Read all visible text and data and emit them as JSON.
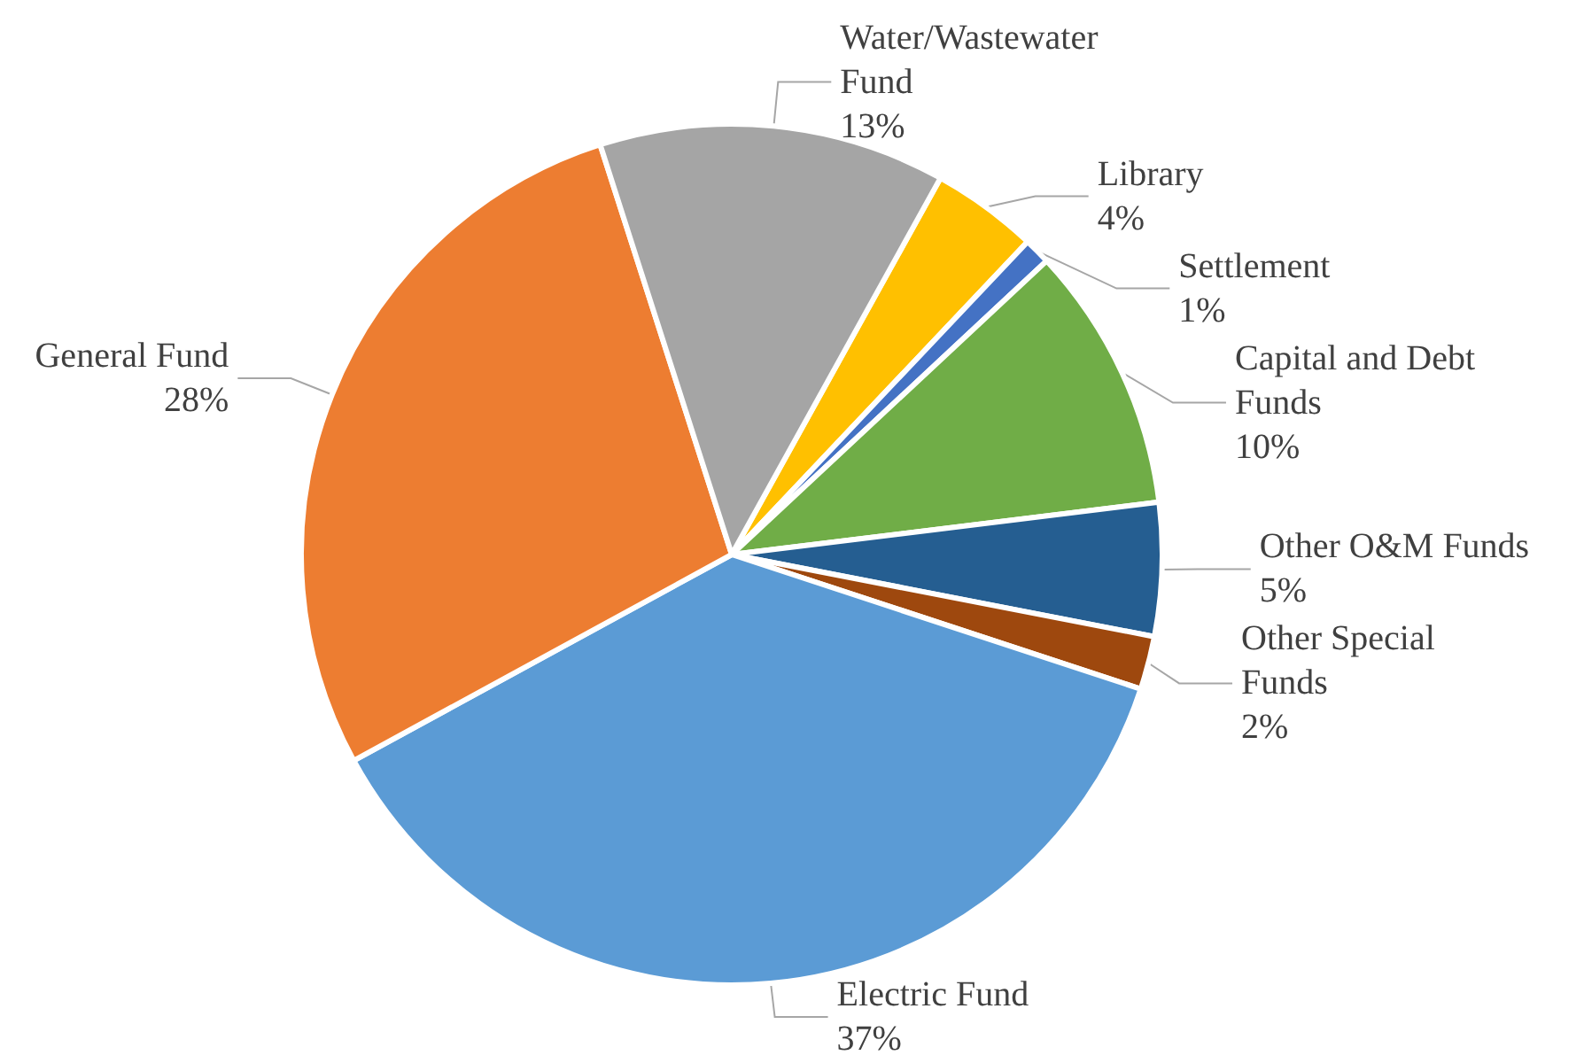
{
  "chart_data": {
    "type": "pie",
    "categories": [
      "Library",
      "Settlement",
      "Capital and Debt Funds",
      "Other O&M Funds",
      "Other Special Funds",
      "Electric Fund",
      "General Fund",
      "Water/Wastewater Fund"
    ],
    "values": [
      4,
      1,
      10,
      5,
      2,
      37,
      28,
      13
    ],
    "colors": [
      "#ffc000",
      "#4472c4",
      "#70ad47",
      "#255e91",
      "#9e480e",
      "#5b9bd5",
      "#ed7d31",
      "#a5a5a5"
    ],
    "value_labels": [
      "4%",
      "1%",
      "10%",
      "5%",
      "2%",
      "37%",
      "28%",
      "13%"
    ],
    "legend": false
  }
}
